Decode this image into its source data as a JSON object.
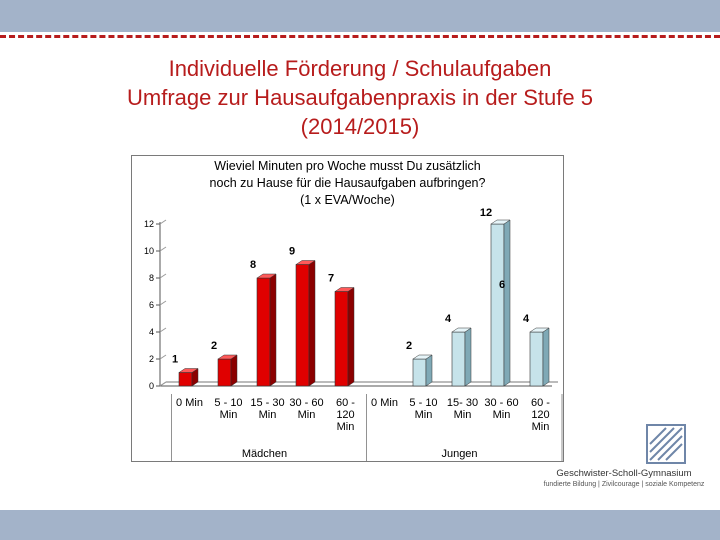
{
  "slide": {
    "title_lines": [
      "Individuelle Förderung / Schulaufgaben",
      "Umfrage zur Hausaufgabenpraxis in der Stufe 5",
      "(2014/2015)"
    ]
  },
  "logo": {
    "name": "Geschwister-Scholl-Gymnasium",
    "tagline": "fundierte Bildung | Zivilcourage | soziale Kompetenz"
  },
  "colors": {
    "accent": "#b71c1c",
    "band": "#a3b3c9",
    "maedchen_bar": "#e00000",
    "jungen_bar": "#c6e3ea"
  },
  "chart_data": {
    "type": "bar",
    "title": "Wieviel Minuten pro Woche musst Du zusätzlich noch zu Hause für die Hausaufgaben aufbringen? (1 x EVA/Woche)",
    "title_lines": [
      "Wieviel Minuten pro Woche musst Du zusätzlich",
      "noch zu Hause für die Hausaufgaben aufbringen?",
      "(1 x EVA/Woche)"
    ],
    "ylim": [
      0,
      12
    ],
    "yticks": [
      "0",
      "2",
      "4",
      "6",
      "8",
      "10",
      "12"
    ],
    "categories": [
      [
        "0 Min"
      ],
      [
        "5 - 10",
        "Min"
      ],
      [
        "15 - 30",
        "Min"
      ],
      [
        "30 - 60",
        "Min"
      ],
      [
        "60 -",
        "120",
        "Min"
      ]
    ],
    "jungen_categories": [
      [
        "0 Min"
      ],
      [
        "5 - 10",
        "Min"
      ],
      [
        "15- 30",
        "Min"
      ],
      [
        "30 - 60",
        "Min"
      ],
      [
        "60 -",
        "120",
        "Min"
      ]
    ],
    "series": [
      {
        "name": "Mädchen",
        "values": [
          1,
          2,
          8,
          9,
          7
        ],
        "labels": [
          "1",
          "2",
          "8",
          "9",
          "7"
        ]
      },
      {
        "name": "Jungen",
        "values": [
          0,
          2,
          4,
          12,
          4
        ],
        "labels": [
          "",
          "2",
          "4",
          "12",
          "4"
        ]
      }
    ],
    "extra_label": "6"
  }
}
